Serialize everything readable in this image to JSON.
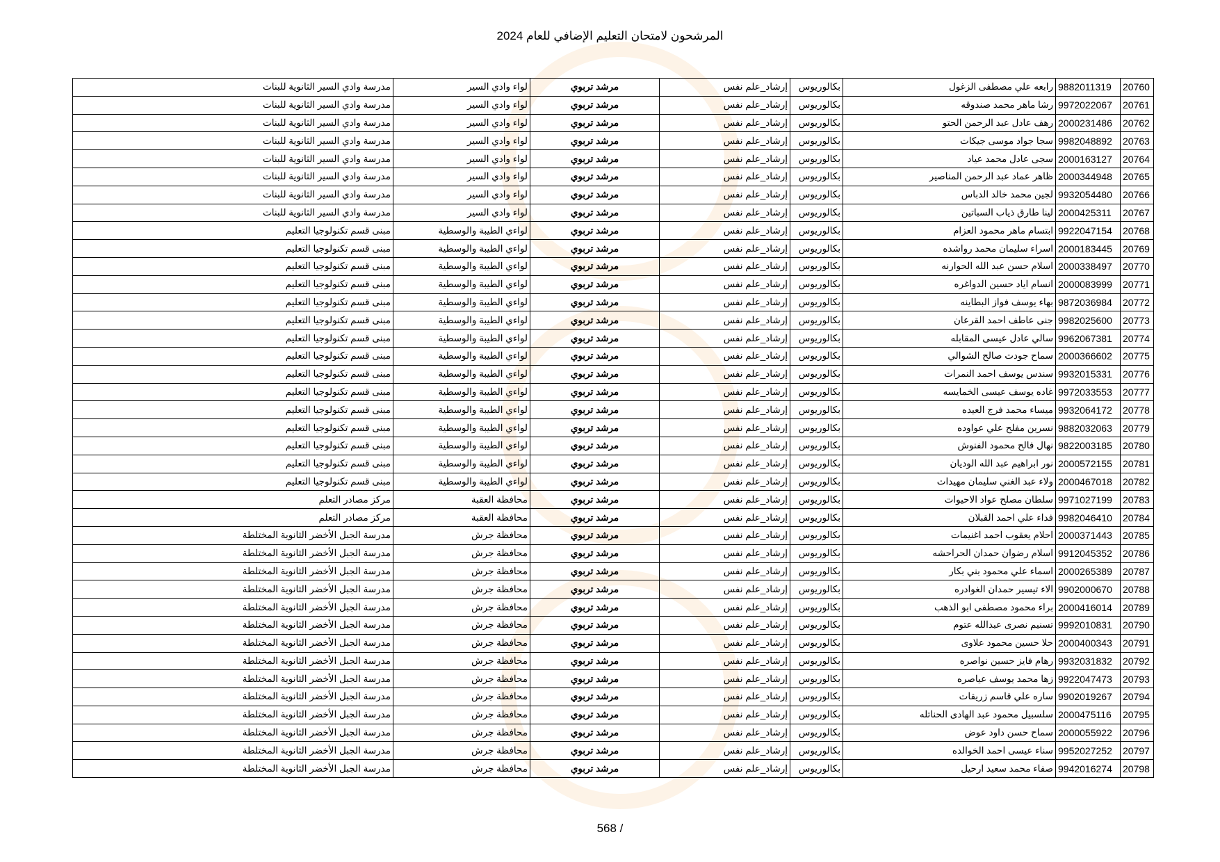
{
  "title": "المرشحون لامتحان التعليم الإضافي للعام 2024",
  "footer": "568 /",
  "rows": [
    [
      "20760",
      "9882011319",
      "رابعه علي مصطفى الزغول",
      "بكالوريوس",
      "إرشاد_علم نفس",
      "مرشد تربوي",
      "لواء وادي السير",
      "مدرسة وادي السير الثانوية للبنات"
    ],
    [
      "20761",
      "9972022067",
      "رشا ماهر محمد صندوقه",
      "بكالوريوس",
      "إرشاد_علم نفس",
      "مرشد تربوي",
      "لواء وادي السير",
      "مدرسة وادي السير الثانوية للبنات"
    ],
    [
      "20762",
      "2000231486",
      "رهف عادل عبد الرحمن الحتو",
      "بكالوريوس",
      "إرشاد_علم نفس",
      "مرشد تربوي",
      "لواء وادي السير",
      "مدرسة وادي السير الثانوية للبنات"
    ],
    [
      "20763",
      "9982048892",
      "سجا جواد موسى جيكات",
      "بكالوريوس",
      "إرشاد_علم نفس",
      "مرشد تربوي",
      "لواء وادي السير",
      "مدرسة وادي السير الثانوية للبنات"
    ],
    [
      "20764",
      "2000163127",
      "سجى عادل محمد عياد",
      "بكالوريوس",
      "إرشاد_علم نفس",
      "مرشد تربوي",
      "لواء وادي السير",
      "مدرسة وادي السير الثانوية للبنات"
    ],
    [
      "20765",
      "2000344948",
      "ظاهر عماد عبد الرحمن المناصير",
      "بكالوريوس",
      "إرشاد_علم نفس",
      "مرشد تربوي",
      "لواء وادي السير",
      "مدرسة وادي السير الثانوية للبنات"
    ],
    [
      "20766",
      "9932054480",
      "لجين محمد خالد الدباس",
      "بكالوريوس",
      "إرشاد_علم نفس",
      "مرشد تربوي",
      "لواء وادي السير",
      "مدرسة وادي السير الثانوية للبنات"
    ],
    [
      "20767",
      "2000425311",
      "لينا طارق ذياب السباتين",
      "بكالوريوس",
      "إرشاد_علم نفس",
      "مرشد تربوي",
      "لواء وادي السير",
      "مدرسة وادي السير الثانوية للبنات"
    ],
    [
      "20768",
      "9922047154",
      "ابتسام ماهر محمود العزام",
      "بكالوريوس",
      "إرشاد_علم نفس",
      "مرشد تربوي",
      "لواءي الطيبة والوسطية",
      "مبنى قسم تكنولوجيا التعليم"
    ],
    [
      "20769",
      "2000183445",
      "اسراء سليمان محمد رواشده",
      "بكالوريوس",
      "إرشاد_علم نفس",
      "مرشد تربوي",
      "لواءي الطيبة والوسطية",
      "مبنى قسم تكنولوجيا التعليم"
    ],
    [
      "20770",
      "2000338497",
      "اسلام حسن عبد الله الحوارنه",
      "بكالوريوس",
      "إرشاد_علم نفس",
      "مرشد تربوي",
      "لواءي الطيبة والوسطية",
      "مبنى قسم تكنولوجيا التعليم"
    ],
    [
      "20771",
      "2000083999",
      "انسام اياد حسين الدواغره",
      "بكالوريوس",
      "إرشاد_علم نفس",
      "مرشد تربوي",
      "لواءي الطيبة والوسطية",
      "مبنى قسم تكنولوجيا التعليم"
    ],
    [
      "20772",
      "9872036984",
      "بهاء يوسف فواز البطاينه",
      "بكالوريوس",
      "إرشاد_علم نفس",
      "مرشد تربوي",
      "لواءي الطيبة والوسطية",
      "مبنى قسم تكنولوجيا التعليم"
    ],
    [
      "20773",
      "9982025600",
      "جنى عاطف احمد القرعان",
      "بكالوريوس",
      "إرشاد_علم نفس",
      "مرشد تربوي",
      "لواءي الطيبة والوسطية",
      "مبنى قسم تكنولوجيا التعليم"
    ],
    [
      "20774",
      "9962067381",
      "سالي عادل عيسى المقابله",
      "بكالوريوس",
      "إرشاد_علم نفس",
      "مرشد تربوي",
      "لواءي الطيبة والوسطية",
      "مبنى قسم تكنولوجيا التعليم"
    ],
    [
      "20775",
      "2000366602",
      "سماح جودت صالح الشوالي",
      "بكالوريوس",
      "إرشاد_علم نفس",
      "مرشد تربوي",
      "لواءي الطيبة والوسطية",
      "مبنى قسم تكنولوجيا التعليم"
    ],
    [
      "20776",
      "9932015331",
      "سندس يوسف احمد النمرات",
      "بكالوريوس",
      "إرشاد_علم نفس",
      "مرشد تربوي",
      "لواءي الطيبة والوسطية",
      "مبنى قسم تكنولوجيا التعليم"
    ],
    [
      "20777",
      "9972033553",
      "غاده يوسف عيسى الخمايسه",
      "بكالوريوس",
      "إرشاد_علم نفس",
      "مرشد تربوي",
      "لواءي الطيبة والوسطية",
      "مبنى قسم تكنولوجيا التعليم"
    ],
    [
      "20778",
      "9932064172",
      "ميساء محمد فرج العيده",
      "بكالوريوس",
      "إرشاد_علم نفس",
      "مرشد تربوي",
      "لواءي الطيبة والوسطية",
      "مبنى قسم تكنولوجيا التعليم"
    ],
    [
      "20779",
      "9882032063",
      "نسرين مفلح علي عواوده",
      "بكالوريوس",
      "إرشاد_علم نفس",
      "مرشد تربوي",
      "لواءي الطيبة والوسطية",
      "مبنى قسم تكنولوجيا التعليم"
    ],
    [
      "20780",
      "9822003185",
      "نهال فالح محمود الفنوش",
      "بكالوريوس",
      "إرشاد_علم نفس",
      "مرشد تربوي",
      "لواءي الطيبة والوسطية",
      "مبنى قسم تكنولوجيا التعليم"
    ],
    [
      "20781",
      "2000572155",
      "نور ابراهيم عبد الله الوديان",
      "بكالوريوس",
      "إرشاد_علم نفس",
      "مرشد تربوي",
      "لواءي الطيبة والوسطية",
      "مبنى قسم تكنولوجيا التعليم"
    ],
    [
      "20782",
      "2000467018",
      "ولاء عبد الغني سليمان مهيدات",
      "بكالوريوس",
      "إرشاد_علم نفس",
      "مرشد تربوي",
      "لواءي الطيبة والوسطية",
      "مبنى قسم تكنولوجيا التعليم"
    ],
    [
      "20783",
      "9971027199",
      "سلطان مصلح عواد الاحيوات",
      "بكالوريوس",
      "إرشاد_علم نفس",
      "مرشد تربوي",
      "محافظة العقبة",
      "مركز مصادر التعلم"
    ],
    [
      "20784",
      "9982046410",
      "فداء علي احمد القبلان",
      "بكالوريوس",
      "إرشاد_علم نفس",
      "مرشد تربوي",
      "محافظة العقبة",
      "مركز مصادر التعلم"
    ],
    [
      "20785",
      "2000371443",
      "احلام يعقوب احمد اغنيمات",
      "بكالوريوس",
      "إرشاد_علم نفس",
      "مرشد تربوي",
      "محافظة جرش",
      "مدرسة الجبل الأخضر الثانوية المختلطة"
    ],
    [
      "20786",
      "9912045352",
      "اسلام رضوان حمدان الحراحشه",
      "بكالوريوس",
      "إرشاد_علم نفس",
      "مرشد تربوي",
      "محافظة جرش",
      "مدرسة الجبل الأخضر الثانوية المختلطة"
    ],
    [
      "20787",
      "2000265389",
      "اسماء علي محمود بني بكار",
      "بكالوريوس",
      "إرشاد_علم نفس",
      "مرشد تربوي",
      "محافظة جرش",
      "مدرسة الجبل الأخضر الثانوية المختلطة"
    ],
    [
      "20788",
      "9902000670",
      "الاء تيسير حمدان الغوادره",
      "بكالوريوس",
      "إرشاد_علم نفس",
      "مرشد تربوي",
      "محافظة جرش",
      "مدرسة الجبل الأخضر الثانوية المختلطة"
    ],
    [
      "20789",
      "2000416014",
      "براء محمود مصطفى ابو الذهب",
      "بكالوريوس",
      "إرشاد_علم نفس",
      "مرشد تربوي",
      "محافظة جرش",
      "مدرسة الجبل الأخضر الثانوية المختلطة"
    ],
    [
      "20790",
      "9992010831",
      "تسنيم نصرى عبدالله عتوم",
      "بكالوريوس",
      "إرشاد_علم نفس",
      "مرشد تربوي",
      "محافظة جرش",
      "مدرسة الجبل الأخضر الثانوية المختلطة"
    ],
    [
      "20791",
      "2000400343",
      "حلا حسين محمود علاوى",
      "بكالوريوس",
      "إرشاد_علم نفس",
      "مرشد تربوي",
      "محافظة جرش",
      "مدرسة الجبل الأخضر الثانوية المختلطة"
    ],
    [
      "20792",
      "9932031832",
      "رهام فايز حسين نواصره",
      "بكالوريوس",
      "إرشاد_علم نفس",
      "مرشد تربوي",
      "محافظة جرش",
      "مدرسة الجبل الأخضر الثانوية المختلطة"
    ],
    [
      "20793",
      "9922047473",
      "زها محمد يوسف عياصره",
      "بكالوريوس",
      "إرشاد_علم نفس",
      "مرشد تربوي",
      "محافظة جرش",
      "مدرسة الجبل الأخضر الثانوية المختلطة"
    ],
    [
      "20794",
      "9902019267",
      "ساره علي قاسم زريقات",
      "بكالوريوس",
      "إرشاد_علم نفس",
      "مرشد تربوي",
      "محافظة جرش",
      "مدرسة الجبل الأخضر الثانوية المختلطة"
    ],
    [
      "20795",
      "2000475116",
      "سلسبيل محمود عبد الهادى الحناتله",
      "بكالوريوس",
      "إرشاد_علم نفس",
      "مرشد تربوي",
      "محافظة جرش",
      "مدرسة الجبل الأخضر الثانوية المختلطة"
    ],
    [
      "20796",
      "2000055922",
      "سماح حسن داود عوض",
      "بكالوريوس",
      "إرشاد_علم نفس",
      "مرشد تربوي",
      "محافظة جرش",
      "مدرسة الجبل الأخضر الثانوية المختلطة"
    ],
    [
      "20797",
      "9952027252",
      "سناء عيسى احمد الخوالده",
      "بكالوريوس",
      "إرشاد_علم نفس",
      "مرشد تربوي",
      "محافظة جرش",
      "مدرسة الجبل الأخضر الثانوية المختلطة"
    ],
    [
      "20798",
      "9942016274",
      "صفاء محمد سعيد ارحيل",
      "بكالوريوس",
      "إرشاد_علم نفس",
      "مرشد تربوي",
      "محافظة جرش",
      "مدرسة الجبل الأخضر الثانوية المختلطة"
    ]
  ]
}
